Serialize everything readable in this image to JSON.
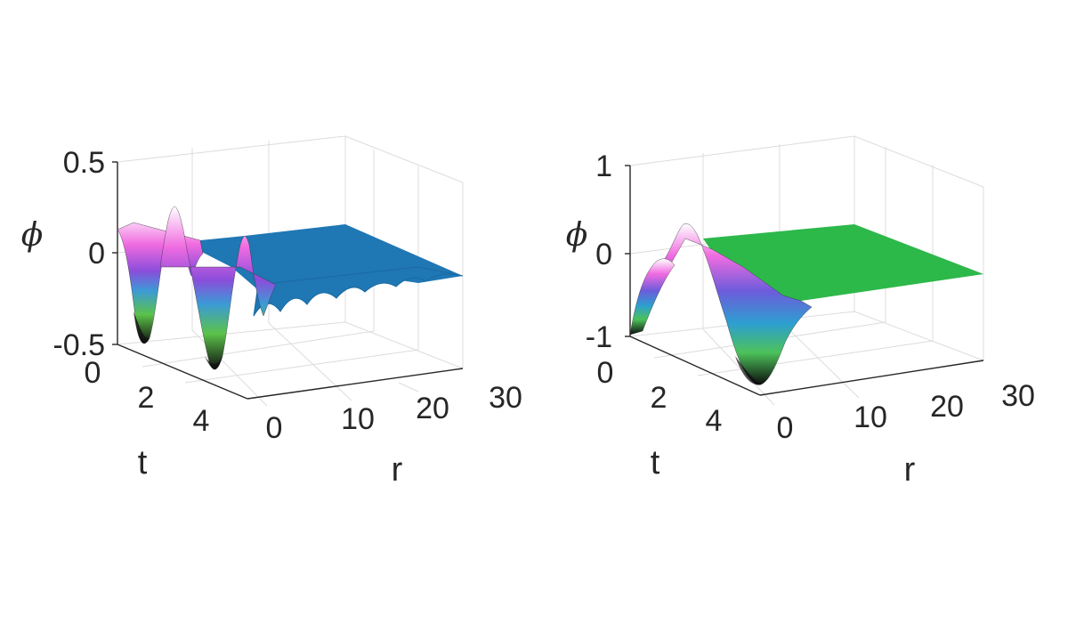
{
  "chart_data": [
    {
      "type": "surface",
      "zlabel": "ϕ",
      "xlabel": "r",
      "ylabel": "t",
      "x_ticks": [
        "0",
        "10",
        "20",
        "30"
      ],
      "y_ticks": [
        "0",
        "2",
        "4"
      ],
      "z_ticks": [
        "0.5",
        "0",
        "-0.5"
      ],
      "xlim": [
        0,
        30
      ],
      "ylim": [
        0,
        5
      ],
      "zlim": [
        -0.5,
        0.5
      ],
      "grid": true,
      "colormap": "rainbow mesh fading to flat blue",
      "flat_color": "#1f77b4"
    },
    {
      "type": "surface",
      "zlabel": "ϕ",
      "xlabel": "r",
      "ylabel": "t",
      "x_ticks": [
        "0",
        "10",
        "20",
        "30"
      ],
      "y_ticks": [
        "0",
        "2",
        "4"
      ],
      "z_ticks": [
        "1",
        "0",
        "-1"
      ],
      "xlim": [
        0,
        30
      ],
      "ylim": [
        0,
        5
      ],
      "zlim": [
        -1,
        1
      ],
      "grid": true,
      "colormap": "rainbow mesh fading to flat green",
      "flat_color": "#2db84a"
    }
  ]
}
